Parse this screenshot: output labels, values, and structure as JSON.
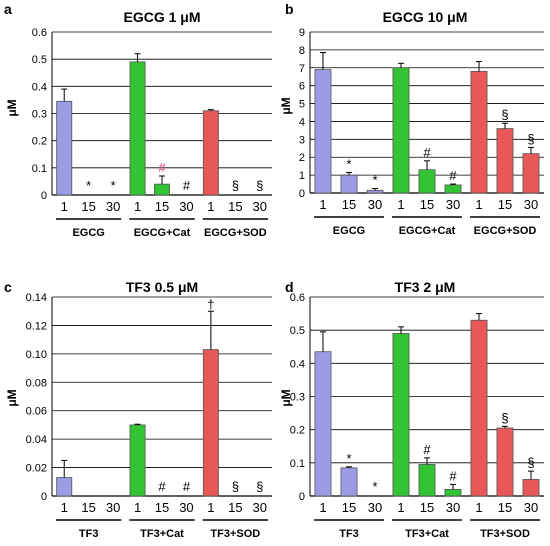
{
  "chart_data": [
    {
      "panel": "a",
      "type": "bar",
      "title": "EGCG 1 μM",
      "ylabel": "μM",
      "ylim": [
        0,
        0.6
      ],
      "yticks": [
        "0",
        "0.1",
        "0.2",
        "0.3",
        "0.4",
        "0.5",
        "0.6"
      ],
      "grid": true,
      "categories": [
        "1",
        "15",
        "30",
        "1",
        "15",
        "30",
        "1",
        "15",
        "30"
      ],
      "groups": [
        "EGCG",
        "EGCG+Cat",
        "EGCG+SOD"
      ],
      "values": [
        0.345,
        0,
        0,
        0.49,
        0.04,
        0,
        0.31,
        0,
        0
      ],
      "errors": [
        0.045,
        0,
        0,
        0.03,
        0.03,
        0,
        0.004,
        0,
        0
      ],
      "annotations": [
        "",
        "*",
        "*",
        "",
        "#",
        "#",
        "",
        "§",
        "§"
      ],
      "colors": [
        "#9b9be6",
        "#9b9be6",
        "#9b9be6",
        "#33c433",
        "#33c433",
        "#33c433",
        "#e85858",
        "#e85858",
        "#e85858"
      ]
    },
    {
      "panel": "b",
      "type": "bar",
      "title": "EGCG 10 μM",
      "ylabel": "μM",
      "ylim": [
        0,
        9
      ],
      "yticks": [
        "0",
        "1",
        "2",
        "3",
        "4",
        "5",
        "6",
        "7",
        "8",
        "9"
      ],
      "grid": true,
      "categories": [
        "1",
        "15",
        "30",
        "1",
        "15",
        "30",
        "1",
        "15",
        "30"
      ],
      "groups": [
        "EGCG",
        "EGCG+Cat",
        "EGCG+SOD"
      ],
      "values": [
        6.9,
        1.0,
        0.15,
        7.0,
        1.3,
        0.45,
        6.8,
        3.6,
        2.2
      ],
      "errors": [
        0.95,
        0.15,
        0.1,
        0.25,
        0.5,
        0.05,
        0.55,
        0.3,
        0.35
      ],
      "annotations": [
        "",
        "*",
        "*",
        "",
        "#",
        "#",
        "",
        "§",
        "§"
      ],
      "colors": [
        "#9b9be6",
        "#9b9be6",
        "#9b9be6",
        "#33c433",
        "#33c433",
        "#33c433",
        "#e85858",
        "#e85858",
        "#e85858"
      ]
    },
    {
      "panel": "c",
      "type": "bar",
      "title": "TF3 0.5 μM",
      "ylabel": "μM",
      "ylim": [
        0,
        0.14
      ],
      "yticks": [
        "0",
        "0.02",
        "0.04",
        "0.06",
        "0.08",
        "0.10",
        "0.12",
        "0.14"
      ],
      "grid": true,
      "categories": [
        "1",
        "15",
        "30",
        "1",
        "15",
        "30",
        "1",
        "15",
        "30"
      ],
      "groups": [
        "TF3",
        "TF3+Cat",
        "TF3+SOD"
      ],
      "values": [
        0.013,
        0,
        0,
        0.05,
        0,
        0,
        0.103,
        0,
        0
      ],
      "errors": [
        0.012,
        0,
        0,
        0.0005,
        0,
        0,
        0.027,
        0,
        0
      ],
      "annotations": [
        "",
        "",
        "",
        "",
        "#",
        "#",
        "†",
        "§",
        "§"
      ],
      "colors": [
        "#9b9be6",
        "#9b9be6",
        "#9b9be6",
        "#33c433",
        "#33c433",
        "#33c433",
        "#e85858",
        "#e85858",
        "#e85858"
      ]
    },
    {
      "panel": "d",
      "type": "bar",
      "title": "TF3 2 μM",
      "ylabel": "μM",
      "ylim": [
        0,
        0.6
      ],
      "yticks": [
        "0",
        "0.1",
        "0.2",
        "0.3",
        "0.4",
        "0.5",
        "0.6"
      ],
      "grid": true,
      "categories": [
        "1",
        "15",
        "30",
        "1",
        "15",
        "30",
        "1",
        "15",
        "30"
      ],
      "groups": [
        "TF3",
        "TF3+Cat",
        "TF3+SOD"
      ],
      "values": [
        0.435,
        0.085,
        0,
        0.49,
        0.095,
        0.02,
        0.53,
        0.205,
        0.05
      ],
      "errors": [
        0.06,
        0.003,
        0,
        0.02,
        0.02,
        0.015,
        0.02,
        0.005,
        0.025
      ],
      "annotations": [
        "",
        "*",
        "*",
        "",
        "#",
        "#",
        "",
        "§",
        "§"
      ],
      "colors": [
        "#9b9be6",
        "#9b9be6",
        "#9b9be6",
        "#33c433",
        "#33c433",
        "#33c433",
        "#e85858",
        "#e85858",
        "#e85858"
      ]
    }
  ]
}
